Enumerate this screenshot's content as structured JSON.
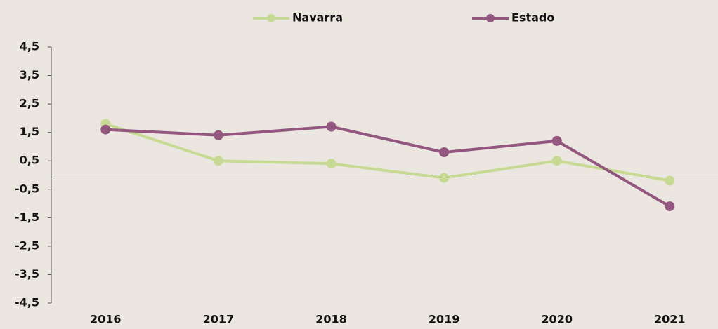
{
  "chart_data": {
    "type": "line",
    "categories": [
      "2016",
      "2017",
      "2018",
      "2019",
      "2020",
      "2021"
    ],
    "series": [
      {
        "name": "Navarra",
        "color": "#c7da94",
        "values": [
          1.8,
          0.5,
          0.4,
          -0.1,
          0.5,
          -0.2
        ]
      },
      {
        "name": "Estado",
        "color": "#93577f",
        "values": [
          1.6,
          1.4,
          1.7,
          0.8,
          1.2,
          -1.1
        ]
      }
    ],
    "ylim": [
      -4.5,
      4.5
    ],
    "yticks": [
      {
        "value": 4.5,
        "label": "4,5"
      },
      {
        "value": 3.5,
        "label": "3,5"
      },
      {
        "value": 2.5,
        "label": "2,5"
      },
      {
        "value": 1.5,
        "label": "1,5"
      },
      {
        "value": 0.5,
        "label": "0,5"
      },
      {
        "value": -0.5,
        "label": "-0,5"
      },
      {
        "value": -1.5,
        "label": "-1,5"
      },
      {
        "value": -2.5,
        "label": "-2,5"
      },
      {
        "value": -3.5,
        "label": "-3,5"
      },
      {
        "value": -4.5,
        "label": "-4,5"
      }
    ],
    "legend": "top"
  }
}
